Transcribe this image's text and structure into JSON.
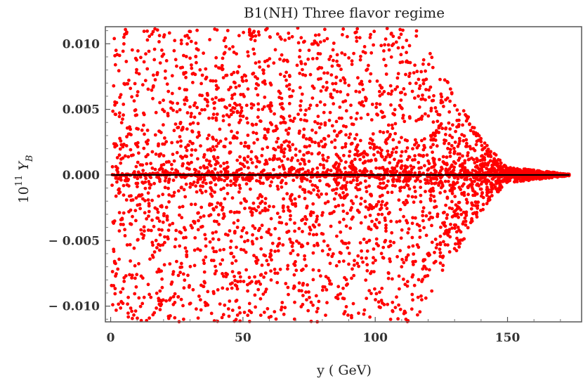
{
  "chart_data": {
    "type": "scatter",
    "title": "B1(NH) Three flavor regime",
    "xlabel": "y ( GeV)",
    "ylabel": {
      "base": "10",
      "exponent": "11",
      "symbol": "Y",
      "subscript": "B"
    },
    "xlim": [
      -2,
      178
    ],
    "ylim": [
      -0.0112,
      0.0113
    ],
    "xticks": [
      0,
      50,
      100,
      150
    ],
    "xtick_labels": [
      "0",
      "50",
      "100",
      "150"
    ],
    "yticks": [
      0.01,
      0.005,
      0.0,
      -0.005,
      -0.01
    ],
    "ytick_labels": [
      "0.010",
      "0.005",
      "0.000",
      "− 0.005",
      "− 0.010"
    ],
    "grid": false,
    "reference_line_y": 0.0,
    "series": [
      {
        "color": "#ff0000",
        "marker": "dot",
        "description_points": [
          {
            "x": 5,
            "y": 0.0105
          },
          {
            "x": 12,
            "y": -0.0098
          },
          {
            "x": 20,
            "y": 0.0092
          },
          {
            "x": 35,
            "y": -0.0085
          },
          {
            "x": 48,
            "y": 0.0078
          },
          {
            "x": 62,
            "y": -0.0072
          },
          {
            "x": 75,
            "y": 0.0095
          },
          {
            "x": 90,
            "y": -0.0068
          },
          {
            "x": 105,
            "y": 0.0062
          },
          {
            "x": 118,
            "y": 0.0058
          },
          {
            "x": 128,
            "y": 0.0048
          },
          {
            "x": 138,
            "y": 0.0032
          },
          {
            "x": 145,
            "y": 0.0008
          },
          {
            "x": 155,
            "y": 0.0003
          },
          {
            "x": 165,
            "y": 0.0001
          },
          {
            "x": 172,
            "y": 5e-05
          }
        ]
      }
    ]
  }
}
